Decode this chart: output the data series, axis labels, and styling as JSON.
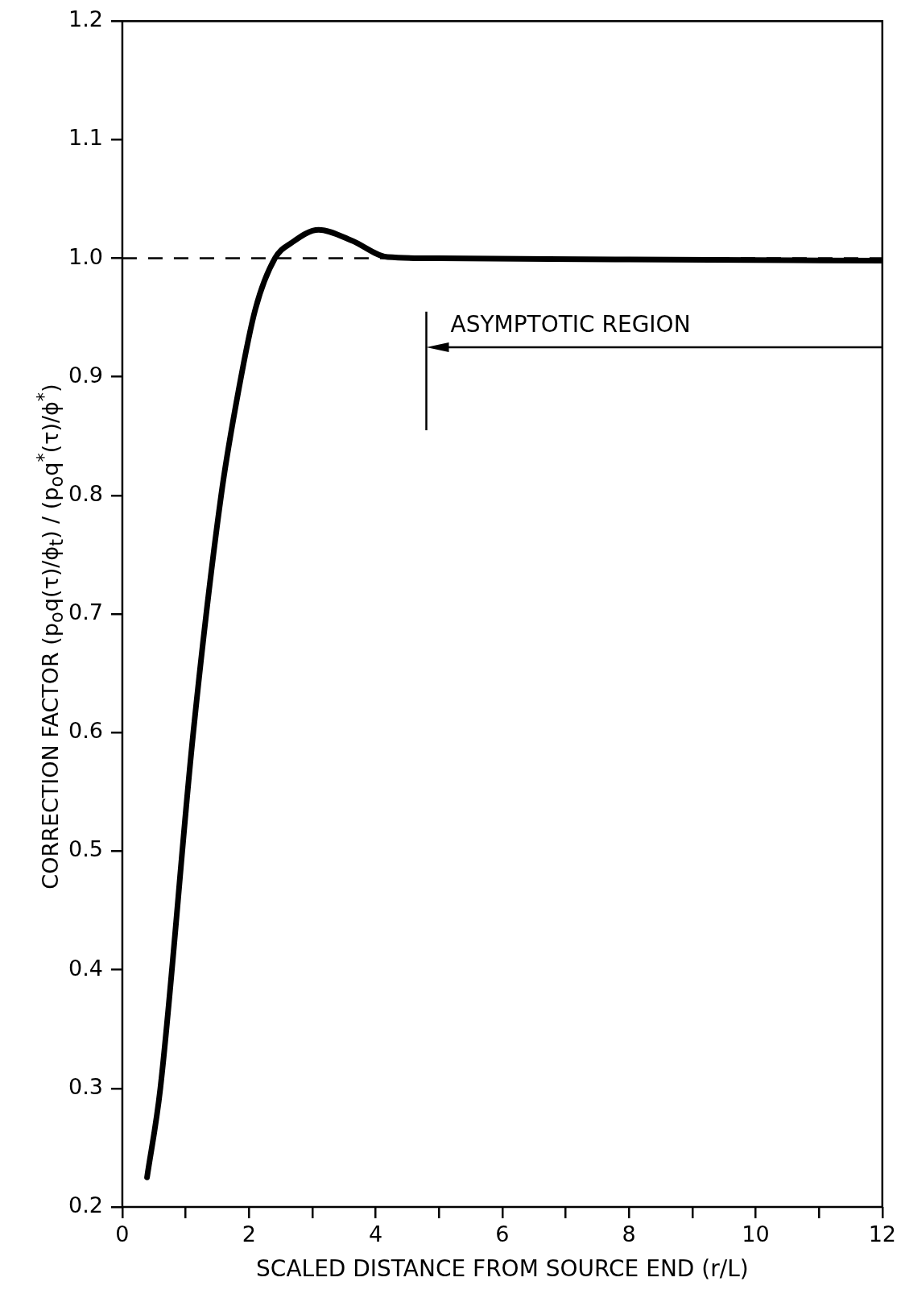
{
  "chart_data": {
    "type": "line",
    "xlabel": "SCALED DISTANCE FROM SOURCE END (r/L)",
    "ylabel": "CORRECTION FACTOR (p$_{o}$q(τ)/ϕ$_{t}$) / (p$_{o}$q$^{*}$(τ)/ϕ$^{*}$)",
    "x": [
      0.39,
      0.6,
      1.12,
      1.56,
      1.84,
      2.1,
      2.41,
      2.67,
      3.1,
      3.62,
      4.19,
      5,
      8,
      12
    ],
    "series": [
      {
        "color": "#000000",
        "values": [
          0.225,
          0.3,
          0.6,
          0.8,
          0.89,
          0.957,
          1.0,
          1.013,
          1.024,
          1.015,
          1.001,
          1.0,
          0.999,
          0.998
        ]
      }
    ],
    "xlim": [
      0,
      12
    ],
    "xticks": [
      0,
      {
        "value": 1,
        "label": null
      },
      2,
      {
        "value": 3,
        "label": null
      },
      4,
      {
        "value": 5,
        "label": null
      },
      6,
      {
        "value": 7,
        "label": null
      },
      8,
      {
        "value": 9,
        "label": null
      },
      10,
      {
        "value": 11,
        "label": null
      },
      12
    ],
    "ylim": [
      0.2,
      1.2
    ],
    "yticks": [
      0.2,
      0.3,
      0.4,
      0.5,
      0.6,
      0.7,
      0.8,
      0.9,
      {
        "value": 1,
        "label": "1.0"
      },
      1.1,
      1.2
    ],
    "ref_lines": [
      {
        "axis": "y",
        "value": 1,
        "line_style": "dashed"
      },
      {
        "axis": "x",
        "value": 4.8,
        "label": "ASYMPTOTIC REGION"
      }
    ],
    "grid": false,
    "legend": false,
    "marker": "none",
    "line_style": "solid"
  }
}
